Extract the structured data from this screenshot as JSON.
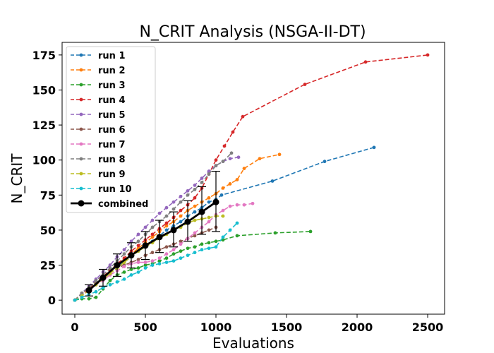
{
  "chart_data": {
    "type": "line",
    "title": "N_CRIT Analysis (NSGA-II-DT)",
    "xlabel": "Evaluations",
    "ylabel": "N_CRIT",
    "xlim": [
      -90,
      2620
    ],
    "ylim": [
      -10,
      184
    ],
    "xticks": [
      0,
      500,
      1000,
      1500,
      2000,
      2500
    ],
    "yticks": [
      0,
      25,
      50,
      75,
      100,
      125,
      150,
      175
    ],
    "grid": false,
    "legend_position": "top-left",
    "series": [
      {
        "name": "run 1",
        "color": "#1f77b4",
        "style": "dashed",
        "marker": "dot",
        "x": [
          0,
          50,
          100,
          150,
          200,
          250,
          300,
          350,
          400,
          450,
          500,
          550,
          600,
          650,
          700,
          750,
          800,
          850,
          900,
          950,
          1000,
          1040,
          1400,
          1770,
          2120
        ],
        "y": [
          0,
          4,
          8,
          12,
          16,
          20,
          24,
          27,
          31,
          35,
          38,
          42,
          46,
          50,
          53,
          56,
          60,
          63,
          66,
          70,
          72,
          75,
          85,
          99,
          109
        ]
      },
      {
        "name": "run 2",
        "color": "#ff7f0e",
        "style": "dashed",
        "marker": "dot",
        "x": [
          0,
          50,
          100,
          150,
          200,
          250,
          300,
          350,
          400,
          450,
          500,
          550,
          600,
          650,
          700,
          750,
          800,
          850,
          900,
          950,
          1000,
          1050,
          1100,
          1150,
          1200,
          1310,
          1450
        ],
        "y": [
          0,
          4,
          8,
          12,
          17,
          21,
          25,
          29,
          33,
          37,
          41,
          45,
          49,
          53,
          56,
          60,
          64,
          67,
          70,
          73,
          76,
          80,
          83,
          86,
          94,
          101,
          104
        ]
      },
      {
        "name": "run 3",
        "color": "#2ca02c",
        "style": "dashed",
        "marker": "dot",
        "x": [
          0,
          50,
          100,
          150,
          200,
          250,
          300,
          350,
          400,
          450,
          500,
          550,
          600,
          650,
          700,
          750,
          800,
          850,
          900,
          950,
          1000,
          1050,
          1150,
          1420,
          1670
        ],
        "y": [
          0,
          1,
          1,
          2,
          8,
          14,
          18,
          20,
          22,
          23,
          25,
          26,
          28,
          30,
          33,
          35,
          37,
          38,
          40,
          41,
          42,
          43,
          46,
          48,
          49
        ]
      },
      {
        "name": "run 4",
        "color": "#d62728",
        "style": "dashed",
        "marker": "dot",
        "x": [
          0,
          50,
          100,
          150,
          200,
          250,
          300,
          350,
          400,
          450,
          500,
          550,
          600,
          650,
          700,
          750,
          800,
          850,
          900,
          950,
          1000,
          1060,
          1120,
          1190,
          1630,
          2060,
          2500
        ],
        "y": [
          0,
          4,
          8,
          12,
          17,
          21,
          26,
          30,
          35,
          39,
          43,
          47,
          51,
          55,
          59,
          64,
          68,
          73,
          80,
          90,
          100,
          110,
          120,
          131,
          154,
          170,
          175
        ]
      },
      {
        "name": "run 5",
        "color": "#9467bd",
        "style": "dashed",
        "marker": "dot",
        "x": [
          0,
          50,
          100,
          150,
          200,
          250,
          300,
          350,
          400,
          450,
          500,
          550,
          600,
          650,
          700,
          750,
          800,
          850,
          900,
          950,
          1000,
          1050,
          1100,
          1160
        ],
        "y": [
          0,
          5,
          10,
          15,
          20,
          25,
          31,
          36,
          42,
          47,
          52,
          57,
          62,
          66,
          70,
          74,
          78,
          82,
          87,
          92,
          96,
          99,
          101,
          102
        ]
      },
      {
        "name": "run 6",
        "color": "#8c564b",
        "style": "dashed",
        "marker": "dot",
        "x": [
          0,
          50,
          100,
          150,
          200,
          250,
          300,
          350,
          400,
          450,
          500,
          550,
          600,
          650,
          700,
          750,
          800,
          850,
          900,
          950,
          1000
        ],
        "y": [
          0,
          5,
          9,
          13,
          17,
          20,
          23,
          25,
          27,
          29,
          32,
          34,
          36,
          38,
          40,
          42,
          44,
          46,
          48,
          50,
          52
        ]
      },
      {
        "name": "run 7",
        "color": "#e377c2",
        "style": "dashed",
        "marker": "dot",
        "x": [
          0,
          50,
          100,
          150,
          200,
          250,
          300,
          350,
          400,
          450,
          500,
          550,
          600,
          650,
          700,
          750,
          800,
          850,
          900,
          950,
          1000,
          1050,
          1100,
          1150,
          1200,
          1260
        ],
        "y": [
          0,
          4,
          7,
          11,
          14,
          18,
          21,
          24,
          26,
          27,
          27,
          28,
          30,
          33,
          36,
          40,
          44,
          48,
          52,
          56,
          61,
          64,
          67,
          68,
          68,
          69
        ]
      },
      {
        "name": "run 8",
        "color": "#7f7f7f",
        "style": "dashed",
        "marker": "dot",
        "x": [
          0,
          50,
          100,
          150,
          200,
          250,
          300,
          350,
          400,
          450,
          500,
          550,
          600,
          650,
          700,
          750,
          800,
          850,
          900,
          950,
          1000,
          1050,
          1110
        ],
        "y": [
          0,
          5,
          9,
          14,
          18,
          23,
          28,
          33,
          38,
          42,
          47,
          52,
          56,
          60,
          65,
          70,
          75,
          79,
          84,
          90,
          96,
          99,
          105
        ]
      },
      {
        "name": "run 9",
        "color": "#bcbd22",
        "style": "dashed",
        "marker": "dot",
        "x": [
          0,
          50,
          100,
          150,
          200,
          250,
          300,
          350,
          400,
          450,
          500,
          550,
          600,
          650,
          700,
          750,
          800,
          850,
          900,
          950,
          1000,
          1050
        ],
        "y": [
          0,
          3,
          7,
          11,
          15,
          19,
          23,
          27,
          31,
          35,
          38,
          41,
          44,
          47,
          50,
          52,
          55,
          57,
          58,
          59,
          60,
          60
        ]
      },
      {
        "name": "run 10",
        "color": "#17becf",
        "style": "dashed",
        "marker": "dot",
        "x": [
          0,
          50,
          100,
          150,
          200,
          250,
          300,
          350,
          400,
          450,
          500,
          550,
          600,
          650,
          700,
          750,
          800,
          850,
          900,
          950,
          1000,
          1050,
          1100,
          1150
        ],
        "y": [
          0,
          2,
          4,
          6,
          9,
          11,
          13,
          15,
          18,
          20,
          23,
          25,
          26,
          27,
          28,
          30,
          32,
          34,
          36,
          37,
          38,
          45,
          50,
          55
        ]
      }
    ],
    "combined": {
      "name": "combined",
      "color": "#000000",
      "x": [
        100,
        200,
        300,
        400,
        500,
        600,
        700,
        800,
        900,
        1000
      ],
      "y": [
        7,
        16,
        25,
        32,
        39,
        45,
        50,
        56,
        63,
        70
      ],
      "err_low": [
        4,
        6,
        8,
        9,
        10,
        11,
        12,
        14,
        16,
        21
      ],
      "err_high": [
        4,
        6,
        8,
        9,
        10,
        12,
        13,
        15,
        18,
        22
      ]
    }
  }
}
